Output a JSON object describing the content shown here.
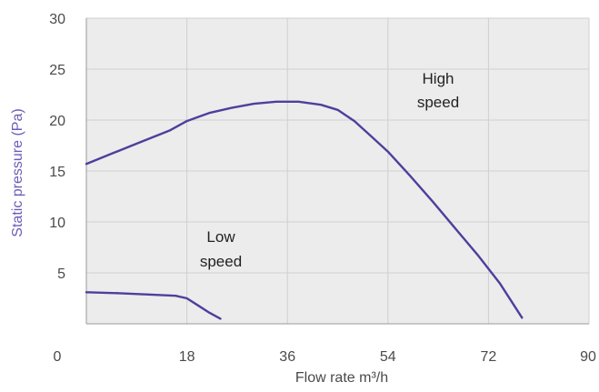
{
  "chart_data": {
    "type": "line",
    "title": "",
    "xlabel": "Flow rate m³/h",
    "ylabel": "Static pressure (Pa)",
    "xlim": [
      0,
      90
    ],
    "ylim": [
      0,
      30
    ],
    "x_ticks": [
      0,
      18,
      36,
      54,
      72,
      90
    ],
    "y_ticks": [
      5,
      10,
      15,
      20,
      25,
      30
    ],
    "grid": true,
    "series": [
      {
        "name": "High speed",
        "label_lines": [
          "High",
          "speed"
        ],
        "color": "#4e3f9c",
        "points": [
          [
            0,
            15.7
          ],
          [
            5,
            16.8
          ],
          [
            10,
            17.9
          ],
          [
            15,
            19.0
          ],
          [
            18,
            19.9
          ],
          [
            22,
            20.7
          ],
          [
            26,
            21.2
          ],
          [
            30,
            21.6
          ],
          [
            34,
            21.8
          ],
          [
            38,
            21.8
          ],
          [
            42,
            21.5
          ],
          [
            45,
            21.0
          ],
          [
            48,
            19.9
          ],
          [
            51,
            18.4
          ],
          [
            54,
            16.9
          ],
          [
            58,
            14.5
          ],
          [
            62,
            12.0
          ],
          [
            66,
            9.4
          ],
          [
            70,
            6.8
          ],
          [
            74,
            4.0
          ],
          [
            78,
            0.6
          ]
        ]
      },
      {
        "name": "Low speed",
        "label_lines": [
          "Low",
          "speed"
        ],
        "color": "#4e3f9c",
        "points": [
          [
            0,
            3.1
          ],
          [
            6,
            3.0
          ],
          [
            12,
            2.85
          ],
          [
            16,
            2.75
          ],
          [
            18,
            2.5
          ],
          [
            20,
            1.8
          ],
          [
            22,
            1.1
          ],
          [
            24,
            0.5
          ]
        ]
      }
    ]
  },
  "colors": {
    "plot_background": "#ececec",
    "grid": "#cfcfcf",
    "axis": "#9a9a9a",
    "tick_label": "#4a4a4a",
    "y_title": "#6b5cb8",
    "x_title": "#4a4a4a",
    "line": "#4e3f9c"
  }
}
